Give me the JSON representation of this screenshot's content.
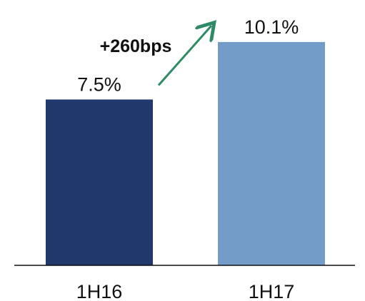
{
  "chart_data": {
    "type": "bar",
    "categories": [
      "1H16",
      "1H17"
    ],
    "values": [
      7.5,
      10.1
    ],
    "data_labels": [
      "7.5%",
      "10.1%"
    ],
    "unit": "%",
    "title": "",
    "xlabel": "",
    "ylabel": "",
    "ylim": [
      0,
      12
    ],
    "grid": false,
    "legend": "none",
    "bar_colors": [
      "#20386b",
      "#749cc9"
    ],
    "annotation": {
      "text": "+260bps",
      "from_category": "1H16",
      "to_category": "1H17",
      "arrow_color": "#2e8b66"
    },
    "axis_color": "#111111"
  }
}
